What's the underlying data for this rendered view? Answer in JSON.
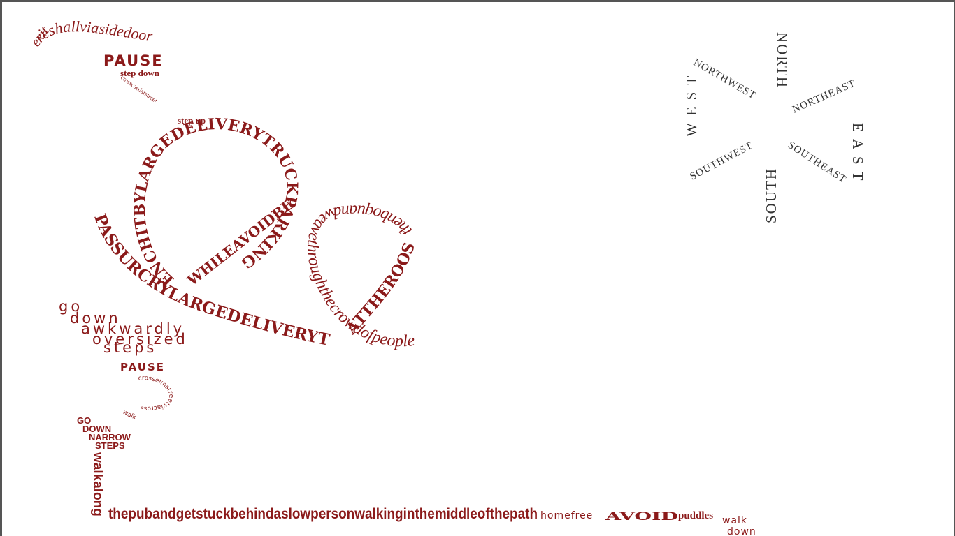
{
  "path_words": {
    "exit": "exit",
    "side_door": "reshallviasidedoor",
    "pause_1": "PAUSE",
    "step_down": "step down",
    "cross_caedar": "crosscaedarstreet",
    "step_up": "step up",
    "loop_big": "PASSURCRYLARGEDELIVERYTRUCKPARKING",
    "loop_inner": "ENCHITBYLARGEDELIVERYTRUCKPARKING",
    "while_avoid": "WHILEAVOIDBE",
    "loop_small": "thenboquandweavethroughthecrowdofpeople",
    "at_the_roost": "ATTHEROOST",
    "go": "go",
    "down": "down",
    "awkwardly": "awkwardly",
    "oversized": "oversized",
    "steps": "steps",
    "pause_2": "PAUSE",
    "cross_elm": "crosselmstreetviacross",
    "walk_small": "walk",
    "go_caps": "GO",
    "down_caps": "DOWN",
    "narrow": "NARROW",
    "steps_caps": "STEPS",
    "walk_along": "walkalong",
    "pub_line": "thepubandgetstuckbehindaslowpersonwalkinginthemiddleofthepath",
    "home_free": "homefree",
    "avoid": "AVOID",
    "puddles": "puddles",
    "walk_end": "walk",
    "down_end": "down"
  },
  "compass": {
    "north": "NORTH",
    "south": "SOUTH",
    "east": "EAST",
    "west": "WEST",
    "northeast": "NORTHEAST",
    "northwest": "NORTHWEST",
    "southeast": "SOUTHEAST",
    "southwest": "SOUTHWEST"
  },
  "colors": {
    "text_accent": "#8b1a1a",
    "compass_text": "#333333",
    "background": "#ffffff"
  }
}
